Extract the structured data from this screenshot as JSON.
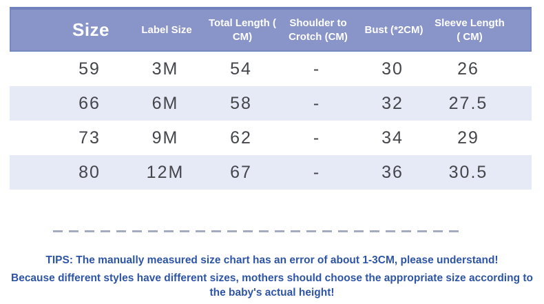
{
  "table": {
    "columns": [
      "Size",
      "Label Size",
      "Total Length ( CM)",
      "Shoulder to Crotch (CM)",
      "Bust (*2CM)",
      "Sleeve Length ( CM)"
    ],
    "rows": [
      [
        "59",
        "3M",
        "54",
        "-",
        "30",
        "26"
      ],
      [
        "66",
        "6M",
        "58",
        "-",
        "32",
        "27.5"
      ],
      [
        "73",
        "9M",
        "62",
        "-",
        "34",
        "29"
      ],
      [
        "80",
        "12M",
        "67",
        "-",
        "36",
        "30.5"
      ]
    ]
  },
  "notes": {
    "tips_line1": "TIPS: The manually measured size chart has an error of about 1-3CM, please understand!",
    "tips_line2": "Because different styles have different sizes, mothers should choose the appropriate size according to the baby's actual height!"
  },
  "colors": {
    "header_bg": "#8994c9",
    "header_border": "#7080ba",
    "header_text": "#ffffff",
    "row_bg": "#ffffff",
    "row_alt_bg": "#e6e9f6",
    "cell_text": "#44464b",
    "dashed_line": "#a4abbf",
    "tips_text": "#2e55a5"
  }
}
